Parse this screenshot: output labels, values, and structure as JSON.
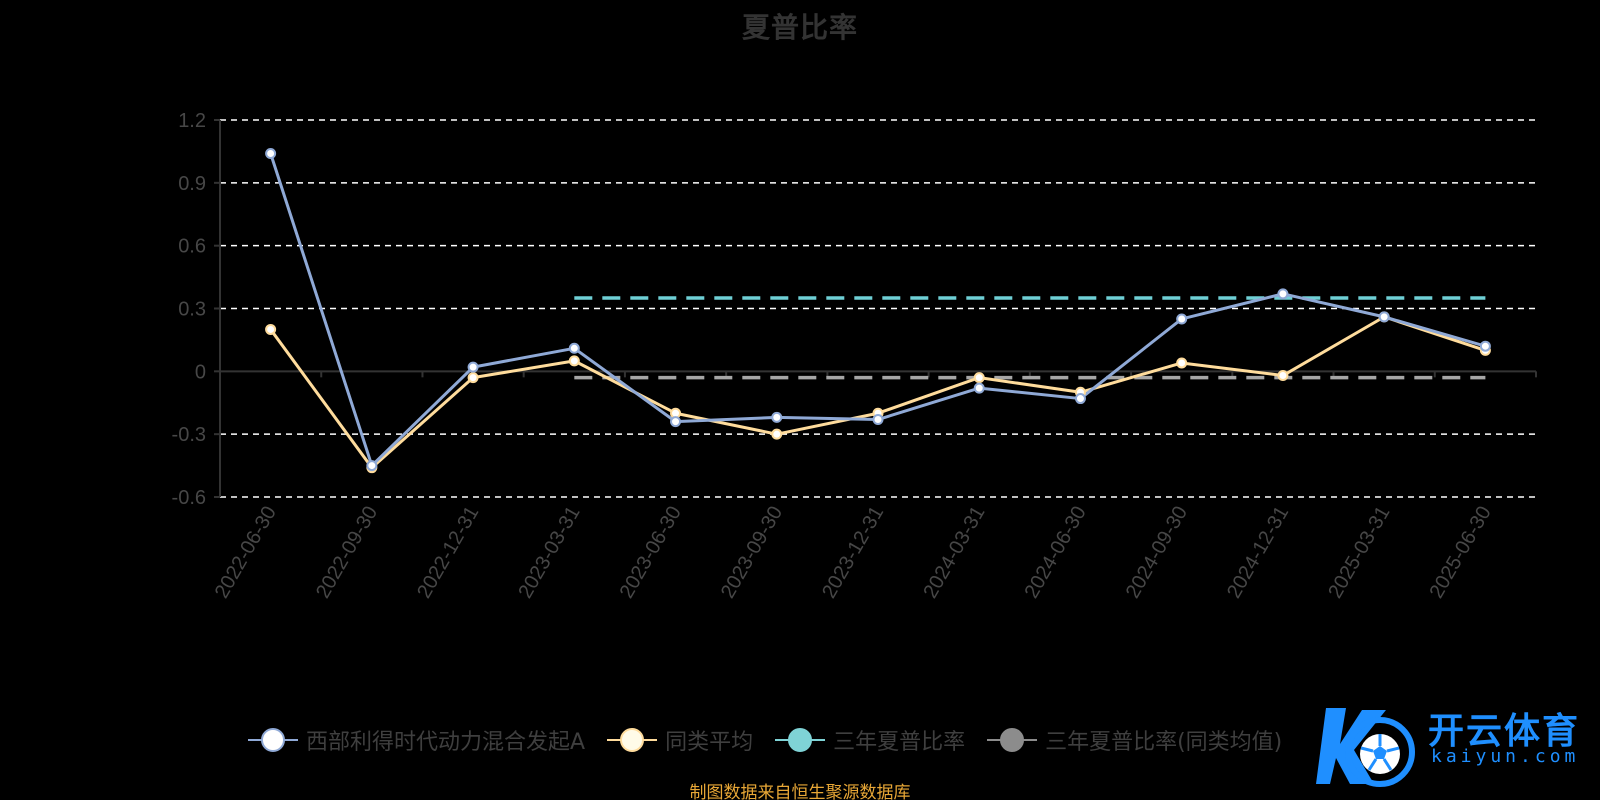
{
  "chart_data": {
    "type": "line",
    "title": "夏普比率",
    "categories": [
      "2022-06-30",
      "2022-09-30",
      "2022-12-31",
      "2023-03-31",
      "2023-06-30",
      "2023-09-30",
      "2023-12-31",
      "2024-03-31",
      "2024-06-30",
      "2024-09-30",
      "2024-12-31",
      "2025-03-31",
      "2025-06-30"
    ],
    "ylim": [
      -0.6,
      1.2
    ],
    "yticks": [
      "1.2",
      "0.9",
      "0.6",
      "0.3",
      "0",
      "-0.3",
      "-0.6"
    ],
    "grid": true,
    "legend_position": "bottom",
    "series": [
      {
        "name": "西部利得时代动力混合发起A",
        "color": "#8fa9d6",
        "values": [
          1.04,
          -0.45,
          0.02,
          0.11,
          -0.24,
          -0.22,
          -0.23,
          -0.08,
          -0.13,
          0.25,
          0.37,
          0.26,
          0.12
        ]
      },
      {
        "name": "同类平均",
        "color": "#ffdc9c",
        "values": [
          0.2,
          -0.46,
          -0.03,
          0.05,
          -0.2,
          -0.3,
          -0.2,
          -0.03,
          -0.1,
          0.04,
          -0.02,
          0.26,
          0.1
        ]
      },
      {
        "name": "三年夏普比率",
        "color": "#6fd0d6",
        "constant": 0.35,
        "from": "2023-03-31",
        "to": "2025-06-30"
      },
      {
        "name": "三年夏普比率(同类均值)",
        "color": "#a6a6a6",
        "constant": -0.03,
        "from": "2023-03-31",
        "to": "2025-06-30"
      }
    ]
  },
  "legend": {
    "items": [
      {
        "label": "西部利得时代动力混合发起A",
        "color": "#8fa9d6"
      },
      {
        "label": "同类平均",
        "color": "#ffdc9c"
      },
      {
        "label": "三年夏普比率",
        "color": "#7fd3d6"
      },
      {
        "label": "三年夏普比率(同类均值)",
        "color": "#8c8c8c"
      }
    ]
  },
  "source": "制图数据来自恒生聚源数据库",
  "watermark": {
    "cn": "开云体育",
    "en": "kaiyun.com"
  }
}
